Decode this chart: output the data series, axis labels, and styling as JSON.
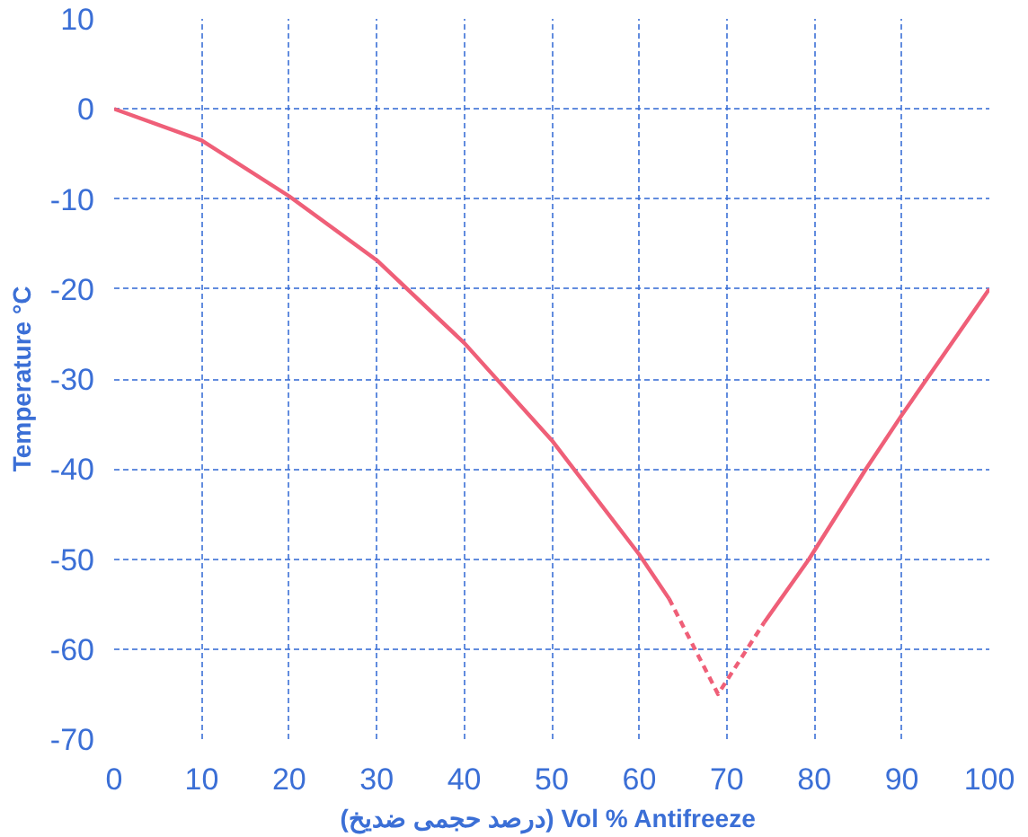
{
  "chart_data": {
    "type": "line",
    "xlabel": "(درصد حجمی ضدیخ)  Vol % Antifreeze",
    "ylabel": "Temperature °C",
    "xlim": [
      0,
      100
    ],
    "ylim": [
      -70,
      10
    ],
    "xticks": [
      0,
      10,
      20,
      30,
      40,
      50,
      60,
      70,
      80,
      90,
      100
    ],
    "yticks": [
      -70,
      -60,
      -50,
      -40,
      -30,
      -20,
      -10,
      0,
      10
    ],
    "grid": true,
    "series": [
      {
        "color": "#ef5f78",
        "line_style": "solid",
        "x": [
          0,
          10,
          20,
          30,
          40,
          50,
          60,
          63.4
        ],
        "values": [
          0,
          -3.5,
          -9.7,
          -16.8,
          -26,
          -36.8,
          -49.5,
          -54.4
        ]
      },
      {
        "color": "#ef5f78",
        "line_style": "dashed",
        "x": [
          63.4,
          69,
          74.3
        ],
        "values": [
          -54.4,
          -65,
          -57
        ]
      },
      {
        "color": "#ef5f78",
        "line_style": "solid",
        "x": [
          74.3,
          79.4,
          85.9,
          90,
          100
        ],
        "values": [
          -57,
          -50,
          -40,
          -34,
          -20
        ]
      }
    ]
  }
}
